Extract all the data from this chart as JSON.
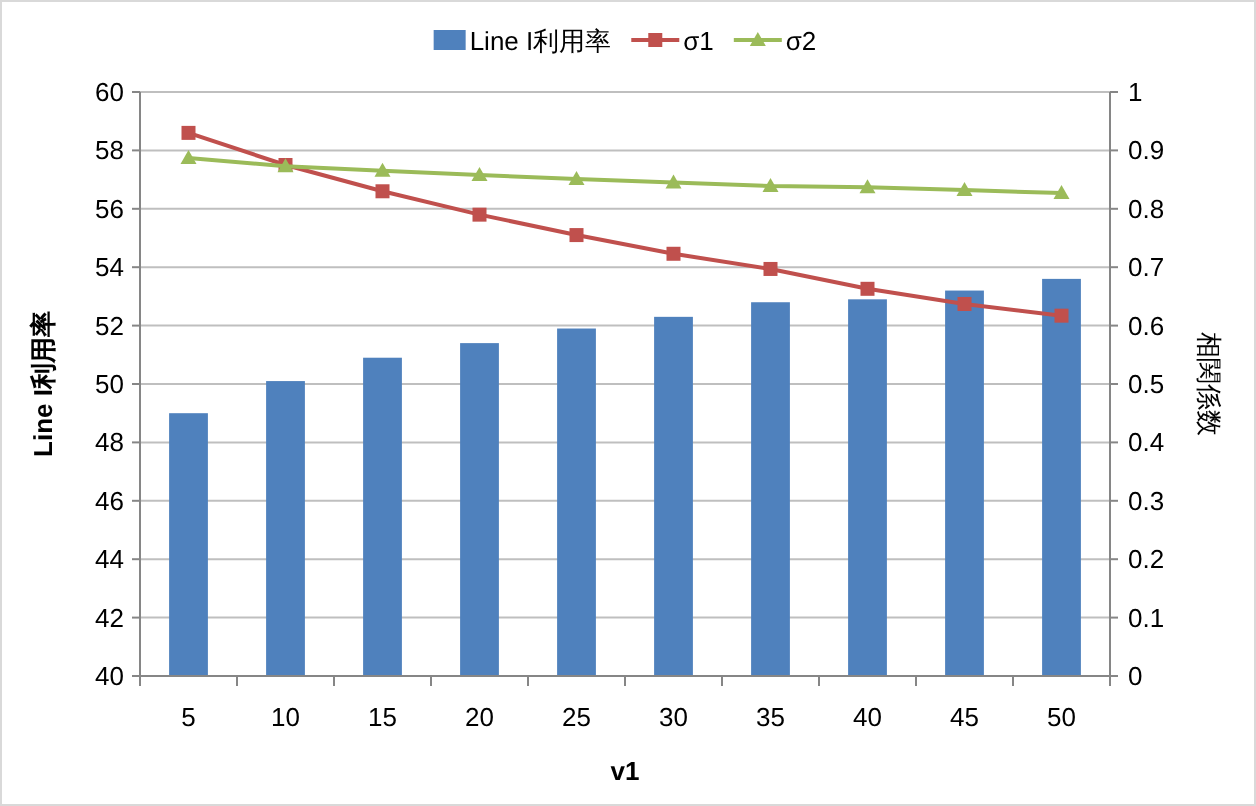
{
  "chart_data": {
    "type": "bar",
    "xlabel": "v1",
    "ylabel": "Line I利用率",
    "y2label": "相関係数",
    "categories": [
      "5",
      "10",
      "15",
      "20",
      "25",
      "30",
      "35",
      "40",
      "45",
      "50"
    ],
    "series": [
      {
        "name": "Line I利用率",
        "color": "#4f81bd",
        "values": [
          49.0,
          50.1,
          50.9,
          51.4,
          51.9,
          52.3,
          52.8,
          52.9,
          53.2,
          53.6
        ]
      },
      {
        "name": "σ1",
        "type": "line",
        "axis": "y2",
        "color": "#c0504d",
        "marker": "square",
        "values": [
          0.93,
          0.875,
          0.83,
          0.79,
          0.755,
          0.723,
          0.697,
          0.663,
          0.637,
          0.617
        ]
      },
      {
        "name": "σ2",
        "type": "line",
        "axis": "y2",
        "color": "#9bbb59",
        "marker": "triangle",
        "values": [
          0.887,
          0.873,
          0.865,
          0.858,
          0.851,
          0.845,
          0.839,
          0.837,
          0.832,
          0.827
        ]
      }
    ],
    "ylim": [
      40,
      60
    ],
    "yticks": [
      40,
      42,
      44,
      46,
      48,
      50,
      52,
      54,
      56,
      58,
      60
    ],
    "y2lim": [
      0,
      1
    ],
    "y2ticks": [
      0,
      0.1,
      0.2,
      0.3,
      0.4,
      0.5,
      0.6,
      0.7,
      0.8,
      0.9,
      1
    ],
    "grid": "y",
    "legend": "top"
  }
}
